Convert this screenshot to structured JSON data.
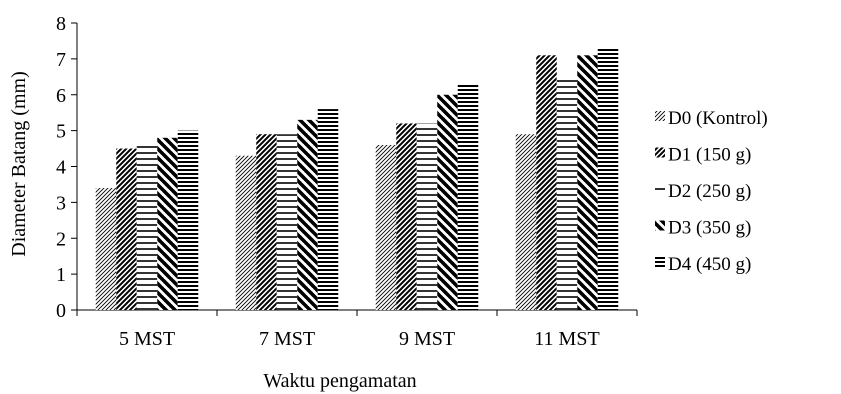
{
  "chart_data": {
    "type": "bar",
    "title": "",
    "xlabel": "Waktu pengamatan",
    "ylabel": "Diameter Batang (mm)",
    "ylim": [
      0,
      8
    ],
    "yticks": [
      "0",
      "1",
      "2",
      "3",
      "4",
      "5",
      "6",
      "7",
      "8"
    ],
    "categories": [
      "5 MST",
      "7 MST",
      "9 MST",
      "11 MST"
    ],
    "series": [
      {
        "name": "D0 (Kontrol)",
        "values": [
          3.4,
          4.3,
          4.6,
          4.9
        ],
        "pattern": "diag-fine-right"
      },
      {
        "name": "D1 (150 g)",
        "values": [
          4.5,
          4.9,
          5.2,
          7.1
        ],
        "pattern": "diag-thick-right"
      },
      {
        "name": "D2 (250 g)",
        "values": [
          4.6,
          4.9,
          5.2,
          6.5
        ],
        "pattern": "horizontal-thin"
      },
      {
        "name": "D3 (350 g)",
        "values": [
          4.8,
          5.3,
          6.0,
          7.1
        ],
        "pattern": "diag-thick-left"
      },
      {
        "name": "D4 (450 g)",
        "values": [
          5.0,
          5.6,
          6.3,
          7.3
        ],
        "pattern": "horizontal-dense"
      }
    ],
    "legend_position": "right",
    "grid": false
  },
  "colors": {
    "ink": "#000000",
    "background": "#ffffff"
  }
}
